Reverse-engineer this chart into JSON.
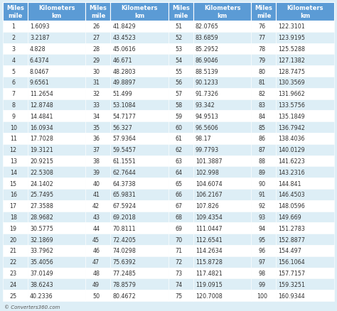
{
  "header_bg": "#5b9bd5",
  "row_bg_odd": "#ffffff",
  "row_bg_even": "#ddeef6",
  "outer_bg": "#ddeef6",
  "header_text_color": "#ffffff",
  "data_text_color": "#333333",
  "footer_text": "© Converters360.com",
  "data": [
    [
      1,
      1.6093,
      26,
      41.8429,
      51,
      82.0765,
      76,
      122.3101
    ],
    [
      2,
      3.2187,
      27,
      43.4523,
      52,
      83.6859,
      77,
      123.9195
    ],
    [
      3,
      4.828,
      28,
      45.0616,
      53,
      85.2952,
      78,
      125.5288
    ],
    [
      4,
      6.4374,
      29,
      46.671,
      54,
      86.9046,
      79,
      127.1382
    ],
    [
      5,
      8.0467,
      30,
      48.2803,
      55,
      88.5139,
      80,
      128.7475
    ],
    [
      6,
      9.6561,
      31,
      49.8897,
      56,
      90.1233,
      81,
      130.3569
    ],
    [
      7,
      11.2654,
      32,
      51.499,
      57,
      91.7326,
      82,
      131.9662
    ],
    [
      8,
      12.8748,
      33,
      53.1084,
      58,
      93.342,
      83,
      133.5756
    ],
    [
      9,
      14.4841,
      34,
      54.7177,
      59,
      94.9513,
      84,
      135.1849
    ],
    [
      10,
      16.0934,
      35,
      56.327,
      60,
      96.5606,
      85,
      136.7942
    ],
    [
      11,
      17.7028,
      36,
      57.9364,
      61,
      98.17,
      86,
      138.4036
    ],
    [
      12,
      19.3121,
      37,
      59.5457,
      62,
      99.7793,
      87,
      140.0129
    ],
    [
      13,
      20.9215,
      38,
      61.1551,
      63,
      101.3887,
      88,
      141.6223
    ],
    [
      14,
      22.5308,
      39,
      62.7644,
      64,
      102.998,
      89,
      143.2316
    ],
    [
      15,
      24.1402,
      40,
      64.3738,
      65,
      104.6074,
      90,
      144.841
    ],
    [
      16,
      25.7495,
      41,
      65.9831,
      66,
      106.2167,
      91,
      146.4503
    ],
    [
      17,
      27.3588,
      42,
      67.5924,
      67,
      107.826,
      92,
      148.0596
    ],
    [
      18,
      28.9682,
      43,
      69.2018,
      68,
      109.4354,
      93,
      149.669
    ],
    [
      19,
      30.5775,
      44,
      70.8111,
      69,
      111.0447,
      94,
      151.2783
    ],
    [
      20,
      32.1869,
      45,
      72.4205,
      70,
      112.6541,
      95,
      152.8877
    ],
    [
      21,
      33.7962,
      46,
      74.0298,
      71,
      114.2634,
      96,
      154.497
    ],
    [
      22,
      35.4056,
      47,
      75.6392,
      72,
      115.8728,
      97,
      156.1064
    ],
    [
      23,
      37.0149,
      48,
      77.2485,
      73,
      117.4821,
      98,
      157.7157
    ],
    [
      24,
      38.6243,
      49,
      78.8579,
      74,
      119.0915,
      99,
      159.3251
    ],
    [
      25,
      40.2336,
      50,
      80.4672,
      75,
      120.7008,
      100,
      160.9344
    ]
  ],
  "km_strings": [
    [
      "1.6093",
      "3.2187",
      "4.828",
      "6.4374",
      "8.0467",
      "9.6561",
      "11.2654",
      "12.8748",
      "14.4841",
      "16.0934",
      "17.7028",
      "19.3121",
      "20.9215",
      "22.5308",
      "24.1402",
      "25.7495",
      "27.3588",
      "28.9682",
      "30.5775",
      "32.1869",
      "33.7962",
      "35.4056",
      "37.0149",
      "38.6243",
      "40.2336"
    ],
    [
      "41.8429",
      "43.4523",
      "45.0616",
      "46.671",
      "48.2803",
      "49.8897",
      "51.499",
      "53.1084",
      "54.7177",
      "56.327",
      "57.9364",
      "59.5457",
      "61.1551",
      "62.7644",
      "64.3738",
      "65.9831",
      "67.5924",
      "69.2018",
      "70.8111",
      "72.4205",
      "74.0298",
      "75.6392",
      "77.2485",
      "78.8579",
      "80.4672"
    ],
    [
      "82.0765",
      "83.6859",
      "85.2952",
      "86.9046",
      "88.5139",
      "90.1233",
      "91.7326",
      "93.342",
      "94.9513",
      "96.5606",
      "98.17",
      "99.7793",
      "101.3887",
      "102.998",
      "104.6074",
      "106.2167",
      "107.826",
      "109.4354",
      "111.0447",
      "112.6541",
      "114.2634",
      "115.8728",
      "117.4821",
      "119.0915",
      "120.7008"
    ],
    [
      "122.3101",
      "123.9195",
      "125.5288",
      "127.1382",
      "128.7475",
      "130.3569",
      "131.9662",
      "133.5756",
      "135.1849",
      "136.7942",
      "138.4036",
      "140.0129",
      "141.6223",
      "143.2316",
      "144.841",
      "146.4503",
      "148.0596",
      "149.669",
      "151.2783",
      "152.8877",
      "154.497",
      "156.1064",
      "157.7157",
      "159.3251",
      "160.9344"
    ]
  ]
}
